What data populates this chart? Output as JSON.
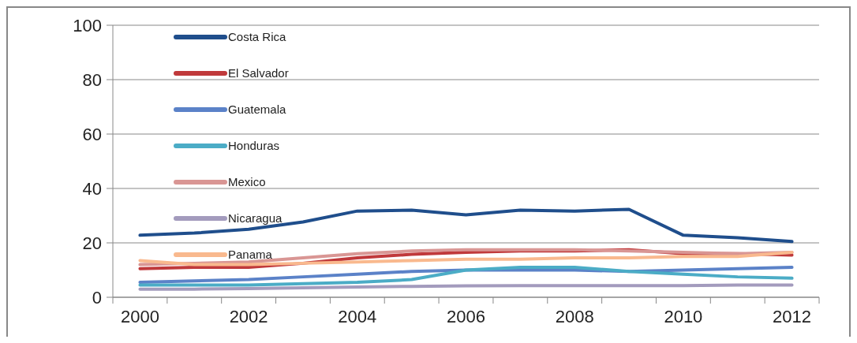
{
  "chart_data": {
    "type": "line",
    "categories": [
      "2000",
      null,
      "2002",
      null,
      "2004",
      null,
      "2006",
      null,
      "2008",
      null,
      "2010",
      null,
      "2012"
    ],
    "ylim": [
      0,
      100
    ],
    "yticks": [
      0,
      20,
      40,
      60,
      80,
      100
    ],
    "grid": "y",
    "legend": "top left",
    "marker": "none",
    "line_style": "solid",
    "series": [
      {
        "name": "Costa Rica",
        "color": "#1f4e8c",
        "values": [
          22.8,
          23.6,
          25,
          27.7,
          31.7,
          32,
          30.3,
          32,
          31.7,
          32.3,
          22.8,
          21.9,
          20.5
        ]
      },
      {
        "name": "El Salvador",
        "color": "#c0393b",
        "values": [
          10.5,
          11,
          11,
          12.5,
          14.5,
          15.8,
          16.5,
          17,
          17,
          17.5,
          16,
          16,
          15.5
        ]
      },
      {
        "name": "Guatemala",
        "color": "#5b82c8",
        "values": [
          5.5,
          6,
          6.5,
          7.5,
          8.5,
          9.5,
          10,
          10,
          10,
          9.5,
          10,
          10.5,
          11
        ]
      },
      {
        "name": "Honduras",
        "color": "#4bacc6",
        "values": [
          4.5,
          4.5,
          4.5,
          5,
          5.5,
          6.5,
          10,
          11,
          11,
          9.5,
          8.5,
          7.5,
          7
        ]
      },
      {
        "name": "Mexico",
        "color": "#d99694",
        "values": [
          12,
          12.5,
          13,
          14.5,
          16,
          17,
          17.5,
          17.5,
          17.5,
          17,
          16.5,
          16,
          16.5
        ]
      },
      {
        "name": "Nicaragua",
        "color": "#a39bbd",
        "values": [
          3,
          3,
          3.2,
          3.5,
          3.8,
          4,
          4.2,
          4.3,
          4.3,
          4.3,
          4.3,
          4.5,
          4.5
        ]
      },
      {
        "name": "Panama",
        "color": "#f9b98e",
        "values": [
          13.5,
          12,
          12,
          12.5,
          13,
          13.5,
          14,
          14,
          14.5,
          14.5,
          15,
          15,
          16.5
        ]
      }
    ]
  }
}
